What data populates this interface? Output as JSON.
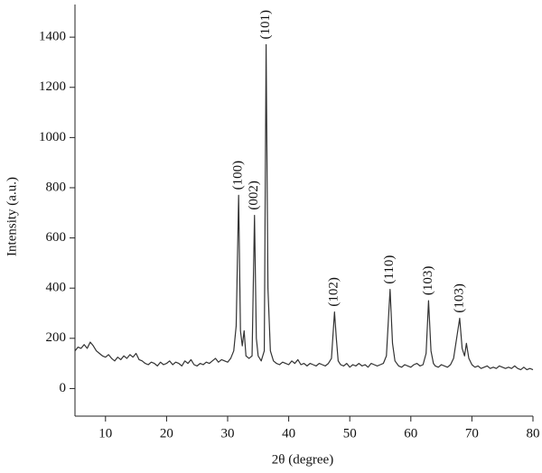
{
  "chart_data": {
    "type": "line",
    "x_label": "2θ (degree)",
    "y_label": "Intensity (a.u.)",
    "xlim": [
      5,
      80
    ],
    "xticks": [
      10,
      20,
      30,
      40,
      50,
      60,
      70,
      80
    ],
    "ylim": [
      -110,
      1530
    ],
    "yticks": [
      0,
      200,
      400,
      600,
      800,
      1000,
      1200,
      1400
    ],
    "color": "#333333",
    "x": [
      5,
      5.5,
      6,
      6.5,
      7,
      7.5,
      8,
      8.5,
      9,
      9.5,
      10,
      10.5,
      11,
      11.5,
      12,
      12.5,
      13,
      13.5,
      14,
      14.5,
      15,
      15.5,
      16,
      16.5,
      17,
      17.5,
      18,
      18.5,
      19,
      19.5,
      20,
      20.5,
      21,
      21.5,
      22,
      22.5,
      23,
      23.5,
      24,
      24.5,
      25,
      25.5,
      26,
      26.5,
      27,
      27.5,
      28,
      28.5,
      29,
      29.5,
      30,
      30.5,
      31,
      31.4,
      31.8,
      32.1,
      32.4,
      32.7,
      33,
      33.5,
      34,
      34.4,
      34.7,
      35,
      35.5,
      36,
      36.3,
      36.6,
      37,
      37.5,
      38,
      38.5,
      39,
      39.5,
      40,
      40.5,
      41,
      41.5,
      42,
      42.5,
      43,
      43.5,
      44,
      44.5,
      45,
      45.5,
      46,
      46.5,
      47,
      47.5,
      47.8,
      48.1,
      48.5,
      49,
      49.5,
      50,
      50.5,
      51,
      51.5,
      52,
      52.5,
      53,
      53.5,
      54,
      54.5,
      55,
      55.5,
      56,
      56.6,
      57,
      57.4,
      58,
      58.5,
      59,
      59.5,
      60,
      60.5,
      61,
      61.5,
      62,
      62.5,
      62.9,
      63.3,
      63.7,
      64,
      64.5,
      65,
      65.5,
      66,
      66.5,
      67,
      67.5,
      68,
      68.4,
      68.8,
      69.1,
      69.5,
      70,
      70.5,
      71,
      71.5,
      72,
      72.5,
      73,
      73.5,
      74,
      74.5,
      75,
      75.5,
      76,
      76.5,
      77,
      77.5,
      78,
      78.5,
      79,
      79.5,
      80
    ],
    "values": [
      150,
      165,
      160,
      175,
      160,
      185,
      170,
      150,
      140,
      130,
      125,
      135,
      120,
      110,
      125,
      115,
      130,
      120,
      135,
      125,
      140,
      115,
      110,
      100,
      95,
      105,
      100,
      90,
      105,
      95,
      100,
      110,
      95,
      105,
      100,
      90,
      110,
      100,
      115,
      95,
      90,
      100,
      95,
      105,
      100,
      110,
      120,
      105,
      115,
      110,
      105,
      120,
      150,
      250,
      770,
      230,
      170,
      230,
      130,
      120,
      130,
      690,
      200,
      130,
      110,
      150,
      1370,
      400,
      150,
      110,
      100,
      95,
      105,
      100,
      95,
      110,
      100,
      115,
      95,
      100,
      90,
      100,
      95,
      90,
      100,
      95,
      90,
      100,
      120,
      305,
      200,
      110,
      95,
      90,
      100,
      85,
      95,
      90,
      100,
      90,
      95,
      85,
      100,
      95,
      90,
      95,
      100,
      130,
      395,
      180,
      110,
      90,
      85,
      95,
      90,
      85,
      95,
      100,
      90,
      95,
      140,
      350,
      150,
      100,
      90,
      85,
      95,
      90,
      85,
      95,
      120,
      200,
      280,
      160,
      130,
      180,
      120,
      95,
      85,
      90,
      80,
      85,
      90,
      80,
      85,
      80,
      90,
      85,
      80,
      85,
      80,
      90,
      80,
      75,
      85,
      75,
      80,
      75
    ],
    "annotations": [
      {
        "text": "(100)",
        "x": 31.8,
        "y": 770
      },
      {
        "text": "(002)",
        "x": 34.4,
        "y": 690
      },
      {
        "text": "(101)",
        "x": 36.3,
        "y": 1370
      },
      {
        "text": "(102)",
        "x": 47.5,
        "y": 305
      },
      {
        "text": "(110)",
        "x": 56.6,
        "y": 395
      },
      {
        "text": "(103)",
        "x": 62.9,
        "y": 350
      },
      {
        "text": "(103)",
        "x": 68.0,
        "y": 280
      }
    ]
  }
}
